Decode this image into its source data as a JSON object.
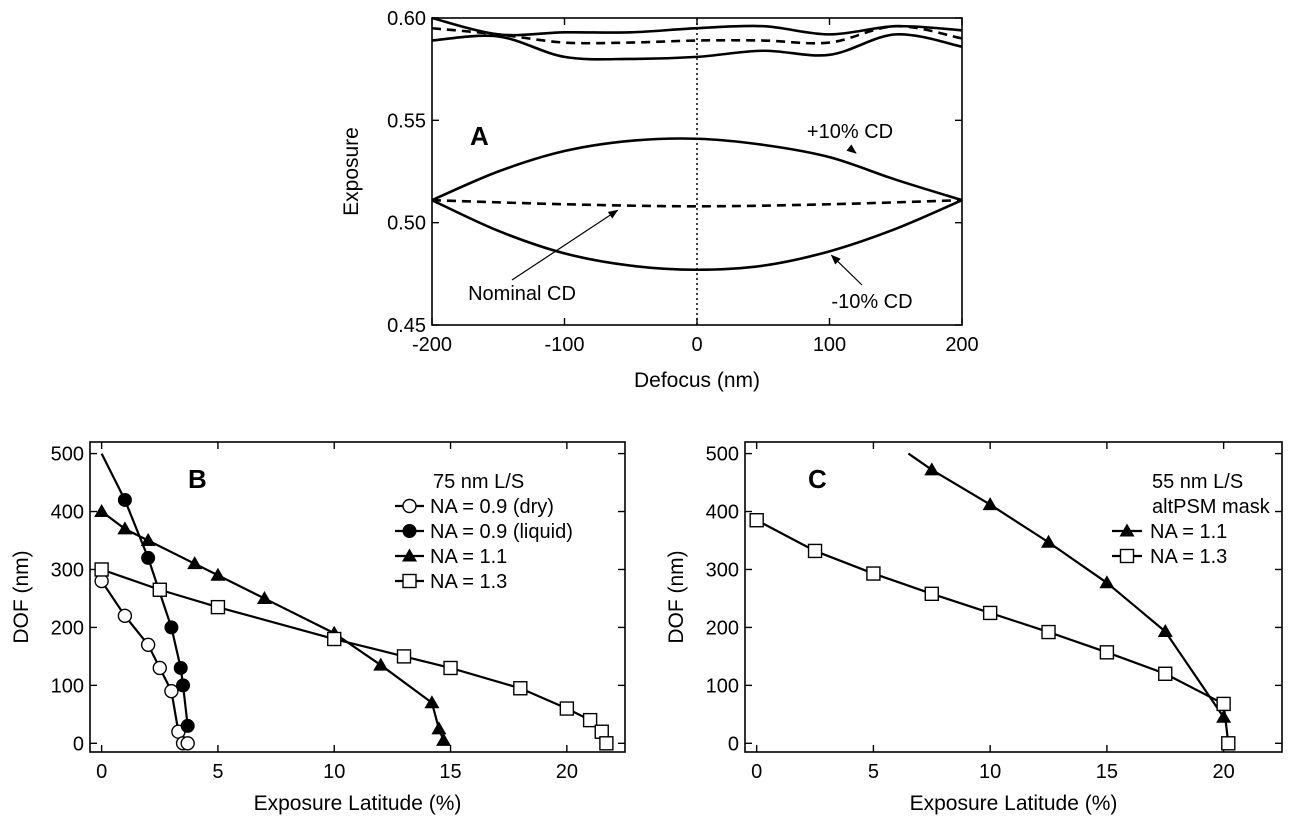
{
  "chart_data": [
    {
      "panel": "A",
      "type": "line",
      "xlabel": "Defocus (nm)",
      "ylabel": "Exposure",
      "xlim": [
        -200,
        200
      ],
      "ylim": [
        0.45,
        0.6
      ],
      "xticks": [
        -200,
        -100,
        0,
        100,
        200
      ],
      "yticks": [
        0.45,
        0.5,
        0.55,
        0.6
      ],
      "ytick_labels": [
        "0.45",
        "0.50",
        "0.55",
        "0.60"
      ],
      "grid": false,
      "series": [
        {
          "style": "solid",
          "x": [
            -200,
            -150,
            -100,
            -50,
            0,
            50,
            100,
            150,
            200
          ],
          "y": [
            0.511,
            0.525,
            0.535,
            0.54,
            0.541,
            0.538,
            0.532,
            0.521,
            0.511
          ]
        },
        {
          "style": "dashed",
          "x": [
            -200,
            -100,
            0,
            100,
            200
          ],
          "y": [
            0.511,
            0.509,
            0.508,
            0.509,
            0.511
          ]
        },
        {
          "style": "solid",
          "x": [
            -200,
            -150,
            -100,
            -50,
            0,
            50,
            100,
            150,
            200
          ],
          "y": [
            0.511,
            0.496,
            0.485,
            0.479,
            0.477,
            0.479,
            0.486,
            0.497,
            0.511
          ]
        },
        {
          "style": "solid",
          "x": [
            -200,
            -150,
            -100,
            -50,
            0,
            50,
            100,
            150,
            200
          ],
          "y": [
            0.6,
            0.592,
            0.593,
            0.593,
            0.595,
            0.596,
            0.592,
            0.596,
            0.594
          ]
        },
        {
          "style": "dashed",
          "x": [
            -200,
            -150,
            -100,
            -50,
            0,
            50,
            100,
            150,
            200
          ],
          "y": [
            0.595,
            0.592,
            0.588,
            0.588,
            0.589,
            0.589,
            0.588,
            0.596,
            0.59
          ]
        },
        {
          "style": "solid",
          "x": [
            -200,
            -150,
            -100,
            -50,
            0,
            50,
            100,
            150,
            200
          ],
          "y": [
            0.589,
            0.591,
            0.581,
            0.58,
            0.581,
            0.584,
            0.582,
            0.592,
            0.586
          ]
        }
      ],
      "vline_x": 0,
      "annotations": [
        {
          "text": "A",
          "style": "panel-letter"
        },
        {
          "text": "+10% CD",
          "arrow_to": [
            120,
            0.534
          ]
        },
        {
          "text": "Nominal CD",
          "arrow_to": [
            -60,
            0.508
          ]
        },
        {
          "text": "-10% CD",
          "arrow_to": [
            100,
            0.485
          ]
        }
      ]
    },
    {
      "panel": "B",
      "type": "line",
      "xlabel": "Exposure Latitude (%)",
      "ylabel": "DOF (nm)",
      "xlim": [
        -0.5,
        22.5
      ],
      "ylim": [
        -15,
        520
      ],
      "xticks": [
        0,
        5,
        10,
        15,
        20
      ],
      "yticks": [
        0,
        100,
        200,
        300,
        400,
        500
      ],
      "grid": false,
      "legend_title": "75 nm L/S",
      "legend_position": "top-right",
      "annotations": [
        {
          "text": "B",
          "style": "panel-letter"
        }
      ],
      "series": [
        {
          "name": "NA = 0.9 (dry)",
          "marker": "open-circle",
          "x": [
            0,
            1,
            2,
            2.5,
            3,
            3.3,
            3.5,
            3.7
          ],
          "y": [
            280,
            220,
            170,
            130,
            90,
            20,
            0,
            0
          ]
        },
        {
          "name": "NA = 0.9 (liquid)",
          "marker": "filled-circle",
          "line_extends_to": [
            0,
            500
          ],
          "x": [
            1,
            2,
            3,
            3.4,
            3.5,
            3.7
          ],
          "y": [
            420,
            320,
            200,
            130,
            100,
            30
          ]
        },
        {
          "name": "NA = 1.1",
          "marker": "filled-triangle",
          "x": [
            0,
            1,
            2,
            4,
            5,
            7,
            10,
            12,
            14.2,
            14.5,
            14.7
          ],
          "y": [
            400,
            370,
            350,
            310,
            290,
            250,
            190,
            135,
            70,
            25,
            5
          ]
        },
        {
          "name": "NA = 1.3",
          "marker": "open-square",
          "x": [
            0,
            2.5,
            5,
            10,
            13,
            15,
            18,
            20,
            21,
            21.5,
            21.7
          ],
          "y": [
            300,
            265,
            235,
            180,
            150,
            130,
            95,
            60,
            40,
            20,
            0
          ]
        }
      ]
    },
    {
      "panel": "C",
      "type": "line",
      "xlabel": "Exposure Latitude (%)",
      "ylabel": "DOF (nm)",
      "xlim": [
        -0.5,
        22.5
      ],
      "ylim": [
        -15,
        520
      ],
      "xticks": [
        0,
        5,
        10,
        15,
        20
      ],
      "yticks": [
        0,
        100,
        200,
        300,
        400,
        500
      ],
      "grid": false,
      "legend_title": [
        "55 nm L/S",
        "altPSM mask"
      ],
      "legend_position": "top-right",
      "annotations": [
        {
          "text": "C",
          "style": "panel-letter"
        }
      ],
      "series": [
        {
          "name": "NA = 1.1",
          "marker": "filled-triangle",
          "line_extends_to": [
            6.5,
            500
          ],
          "x": [
            7.5,
            10,
            12.5,
            15,
            17.5,
            20
          ],
          "y": [
            472,
            412,
            347,
            277,
            193,
            45
          ]
        },
        {
          "name": "NA = 1.3",
          "marker": "open-square",
          "x": [
            0,
            2.5,
            5,
            7.5,
            10,
            12.5,
            15,
            17.5,
            20,
            20.2
          ],
          "y": [
            385,
            332,
            293,
            258,
            225,
            192,
            157,
            120,
            68,
            0
          ]
        }
      ]
    }
  ]
}
